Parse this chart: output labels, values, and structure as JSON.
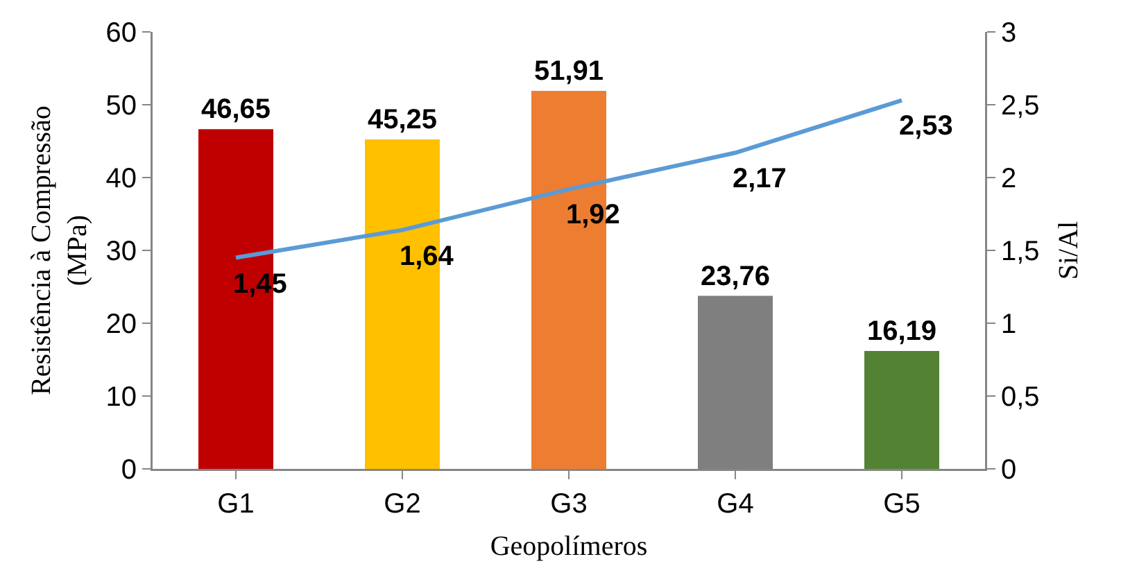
{
  "chart_data": {
    "type": "bar",
    "xlabel": "Geopolímeros",
    "ylabel": "Resistência à Compressão (MPa)",
    "y2label": "Si/Al",
    "categories": [
      "G1",
      "G2",
      "G3",
      "G4",
      "G5"
    ],
    "series": [
      {
        "colors": [
          "#c00000",
          "#ffc000",
          "#ed7d31",
          "#7f7f7f",
          "#548235"
        ],
        "values": [
          46.65,
          45.25,
          51.91,
          23.76,
          16.19
        ],
        "value_labels": [
          "46,65",
          "45,25",
          "51,91",
          "23,76",
          "16,19"
        ]
      },
      {
        "type": "line",
        "axis": "y2",
        "color": "#5b9bd5",
        "marker": "none",
        "line_style": "solid",
        "values": [
          1.45,
          1.64,
          1.92,
          2.17,
          2.53
        ],
        "value_labels": [
          "1,45",
          "1,64",
          "1,92",
          "2,17",
          "2,53"
        ]
      }
    ],
    "ylim": [
      0,
      60
    ],
    "yticks": [
      0,
      10,
      20,
      30,
      40,
      50,
      60
    ],
    "y2lim": [
      0,
      3
    ],
    "y2ticks": [
      0,
      {
        "value": 0.5,
        "label": "0,5"
      },
      1,
      {
        "value": 1.5,
        "label": "1,5"
      },
      2,
      {
        "value": 2.5,
        "label": "2,5"
      },
      3
    ]
  }
}
